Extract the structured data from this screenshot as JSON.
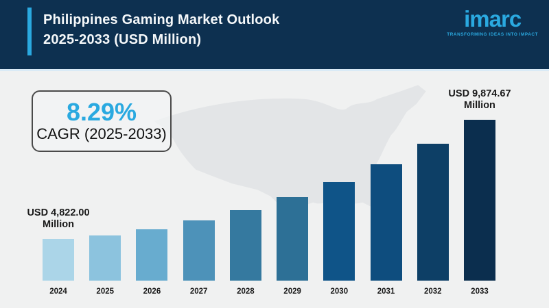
{
  "header": {
    "title_line1": "Philippines Gaming Market Outlook",
    "title_line2": "2025-2033 (USD Million)",
    "bg_color": "#0d3050",
    "accent_color": "#2aa9e0",
    "logo": {
      "text": "imarc",
      "tagline": "TRANSFORMING IDEAS INTO IMPACT",
      "color": "#2aa9e0"
    }
  },
  "cagr_box": {
    "value": "8.29%",
    "label": "CAGR (2025-2033)",
    "value_color": "#2aa9e0"
  },
  "annotations": {
    "first_bar": {
      "line1": "USD 4,822.00",
      "line2": "Million"
    },
    "last_bar": {
      "line1": "USD 9,874.67",
      "line2": "Million"
    }
  },
  "background": {
    "page_color": "#f0f1f1",
    "map_color": "#e3e5e7",
    "map_name": "usa-map-silhouette"
  },
  "chart_data": {
    "type": "bar",
    "title": "Philippines Gaming Market Outlook 2025-2033 (USD Million)",
    "unit": "USD Million",
    "categories": [
      "2024",
      "2025",
      "2026",
      "2027",
      "2028",
      "2029",
      "2030",
      "2031",
      "2032",
      "2033"
    ],
    "values": [
      4822.0,
      5221.66,
      5654.46,
      6123.13,
      6630.65,
      7180.23,
      7775.36,
      8419.81,
      9117.68,
      9874.67
    ],
    "labeled_values": {
      "2024": "USD 4,822.00 Million",
      "2033": "USD 9,874.67 Million"
    },
    "cagr_2025_2033_pct": 8.29,
    "bar_colors": [
      "#abd5e8",
      "#8cc3de",
      "#68accf",
      "#4d92b9",
      "#35799f",
      "#2d7096",
      "#0f5488",
      "#0e4d7e",
      "#0d3f66",
      "#0b2e4e"
    ],
    "ylim": [
      0,
      10000
    ],
    "grid": false,
    "legend": false
  }
}
